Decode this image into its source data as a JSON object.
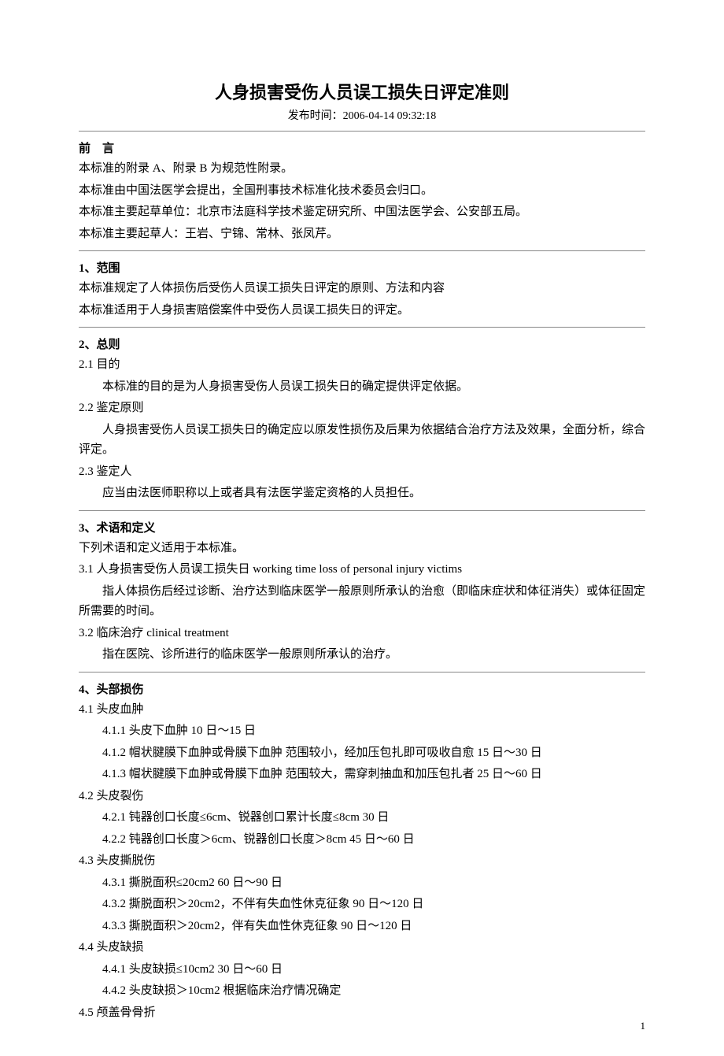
{
  "title": "人身损害受伤人员误工损失日评定准则",
  "subtitle": "发布时间：2006-04-14 09:32:18",
  "preface": {
    "head": "前　言",
    "lines": [
      "本标准的附录 A、附录 B 为规范性附录。",
      "本标准由中国法医学会提出，全国刑事技术标准化技术委员会归口。",
      "本标准主要起草单位：北京市法庭科学技术鉴定研究所、中国法医学会、公安部五局。",
      "本标准主要起草人：王岩、宁锦、常林、张凤芹。"
    ]
  },
  "s1": {
    "head": "1、范围",
    "lines": [
      "本标准规定了人体损伤后受伤人员误工损失日评定的原则、方法和内容",
      "本标准适用于人身损害赔偿案件中受伤人员误工损失日的评定。"
    ]
  },
  "s2": {
    "head": "2、总则",
    "i21_head": "2.1 目的",
    "i21_body": "本标准的目的是为人身损害受伤人员误工损失日的确定提供评定依据。",
    "i22_head": "2.2 鉴定原则",
    "i22_body": "人身损害受伤人员误工损失日的确定应以原发性损伤及后果为依据结合治疗方法及效果，全面分析，综合评定。",
    "i23_head": "2.3 鉴定人",
    "i23_body": "应当由法医师职称以上或者具有法医学鉴定资格的人员担任。"
  },
  "s3": {
    "head": "3、术语和定义",
    "intro": "下列术语和定义适用于本标准。",
    "i31_head": "3.1 人身损害受伤人员误工损失日 working time loss of personal injury victims",
    "i31_body": "指人体损伤后经过诊断、治疗达到临床医学一般原则所承认的治愈（即临床症状和体征消失）或体征固定所需要的时间。",
    "i32_head": "3.2 临床治疗 clinical treatment",
    "i32_body": "指在医院、诊所进行的临床医学一般原则所承认的治疗。"
  },
  "s4": {
    "head": "4、头部损伤",
    "i41_head": "4.1 头皮血肿",
    "i411": "4.1.1 头皮下血肿 10 日～15 日",
    "i412": "4.1.2 帽状腱膜下血肿或骨膜下血肿 范围较小，经加压包扎即可吸收自愈 15 日～30 日",
    "i413": "4.1.3 帽状腱膜下血肿或骨膜下血肿 范围较大，需穿刺抽血和加压包扎者 25 日～60 日",
    "i42_head": "4.2 头皮裂伤",
    "i421": "4.2.1 钝器创口长度≤6cm、锐器创口累计长度≤8cm 30 日",
    "i422": "4.2.2 钝器创口长度＞6cm、锐器创口长度＞8cm 45 日～60 日",
    "i43_head": "4.3  头皮撕脱伤",
    "i431": "4.3.1 撕脱面积≤20cm2 60 日～90 日",
    "i432": "4.3.2 撕脱面积＞20cm2，不伴有失血性休克征象 90 日～120 日",
    "i433": "4.3.3 撕脱面积＞20cm2，伴有失血性休克征象 90 日～120 日",
    "i44_head": "4.4  头皮缺损",
    "i441": "4.4.1 头皮缺损≤10cm2 30 日～60 日",
    "i442": "4.4.2 头皮缺损＞10cm2 根据临床治疗情况确定",
    "i45_head": "4.5 颅盖骨骨折"
  },
  "page_num": "1"
}
